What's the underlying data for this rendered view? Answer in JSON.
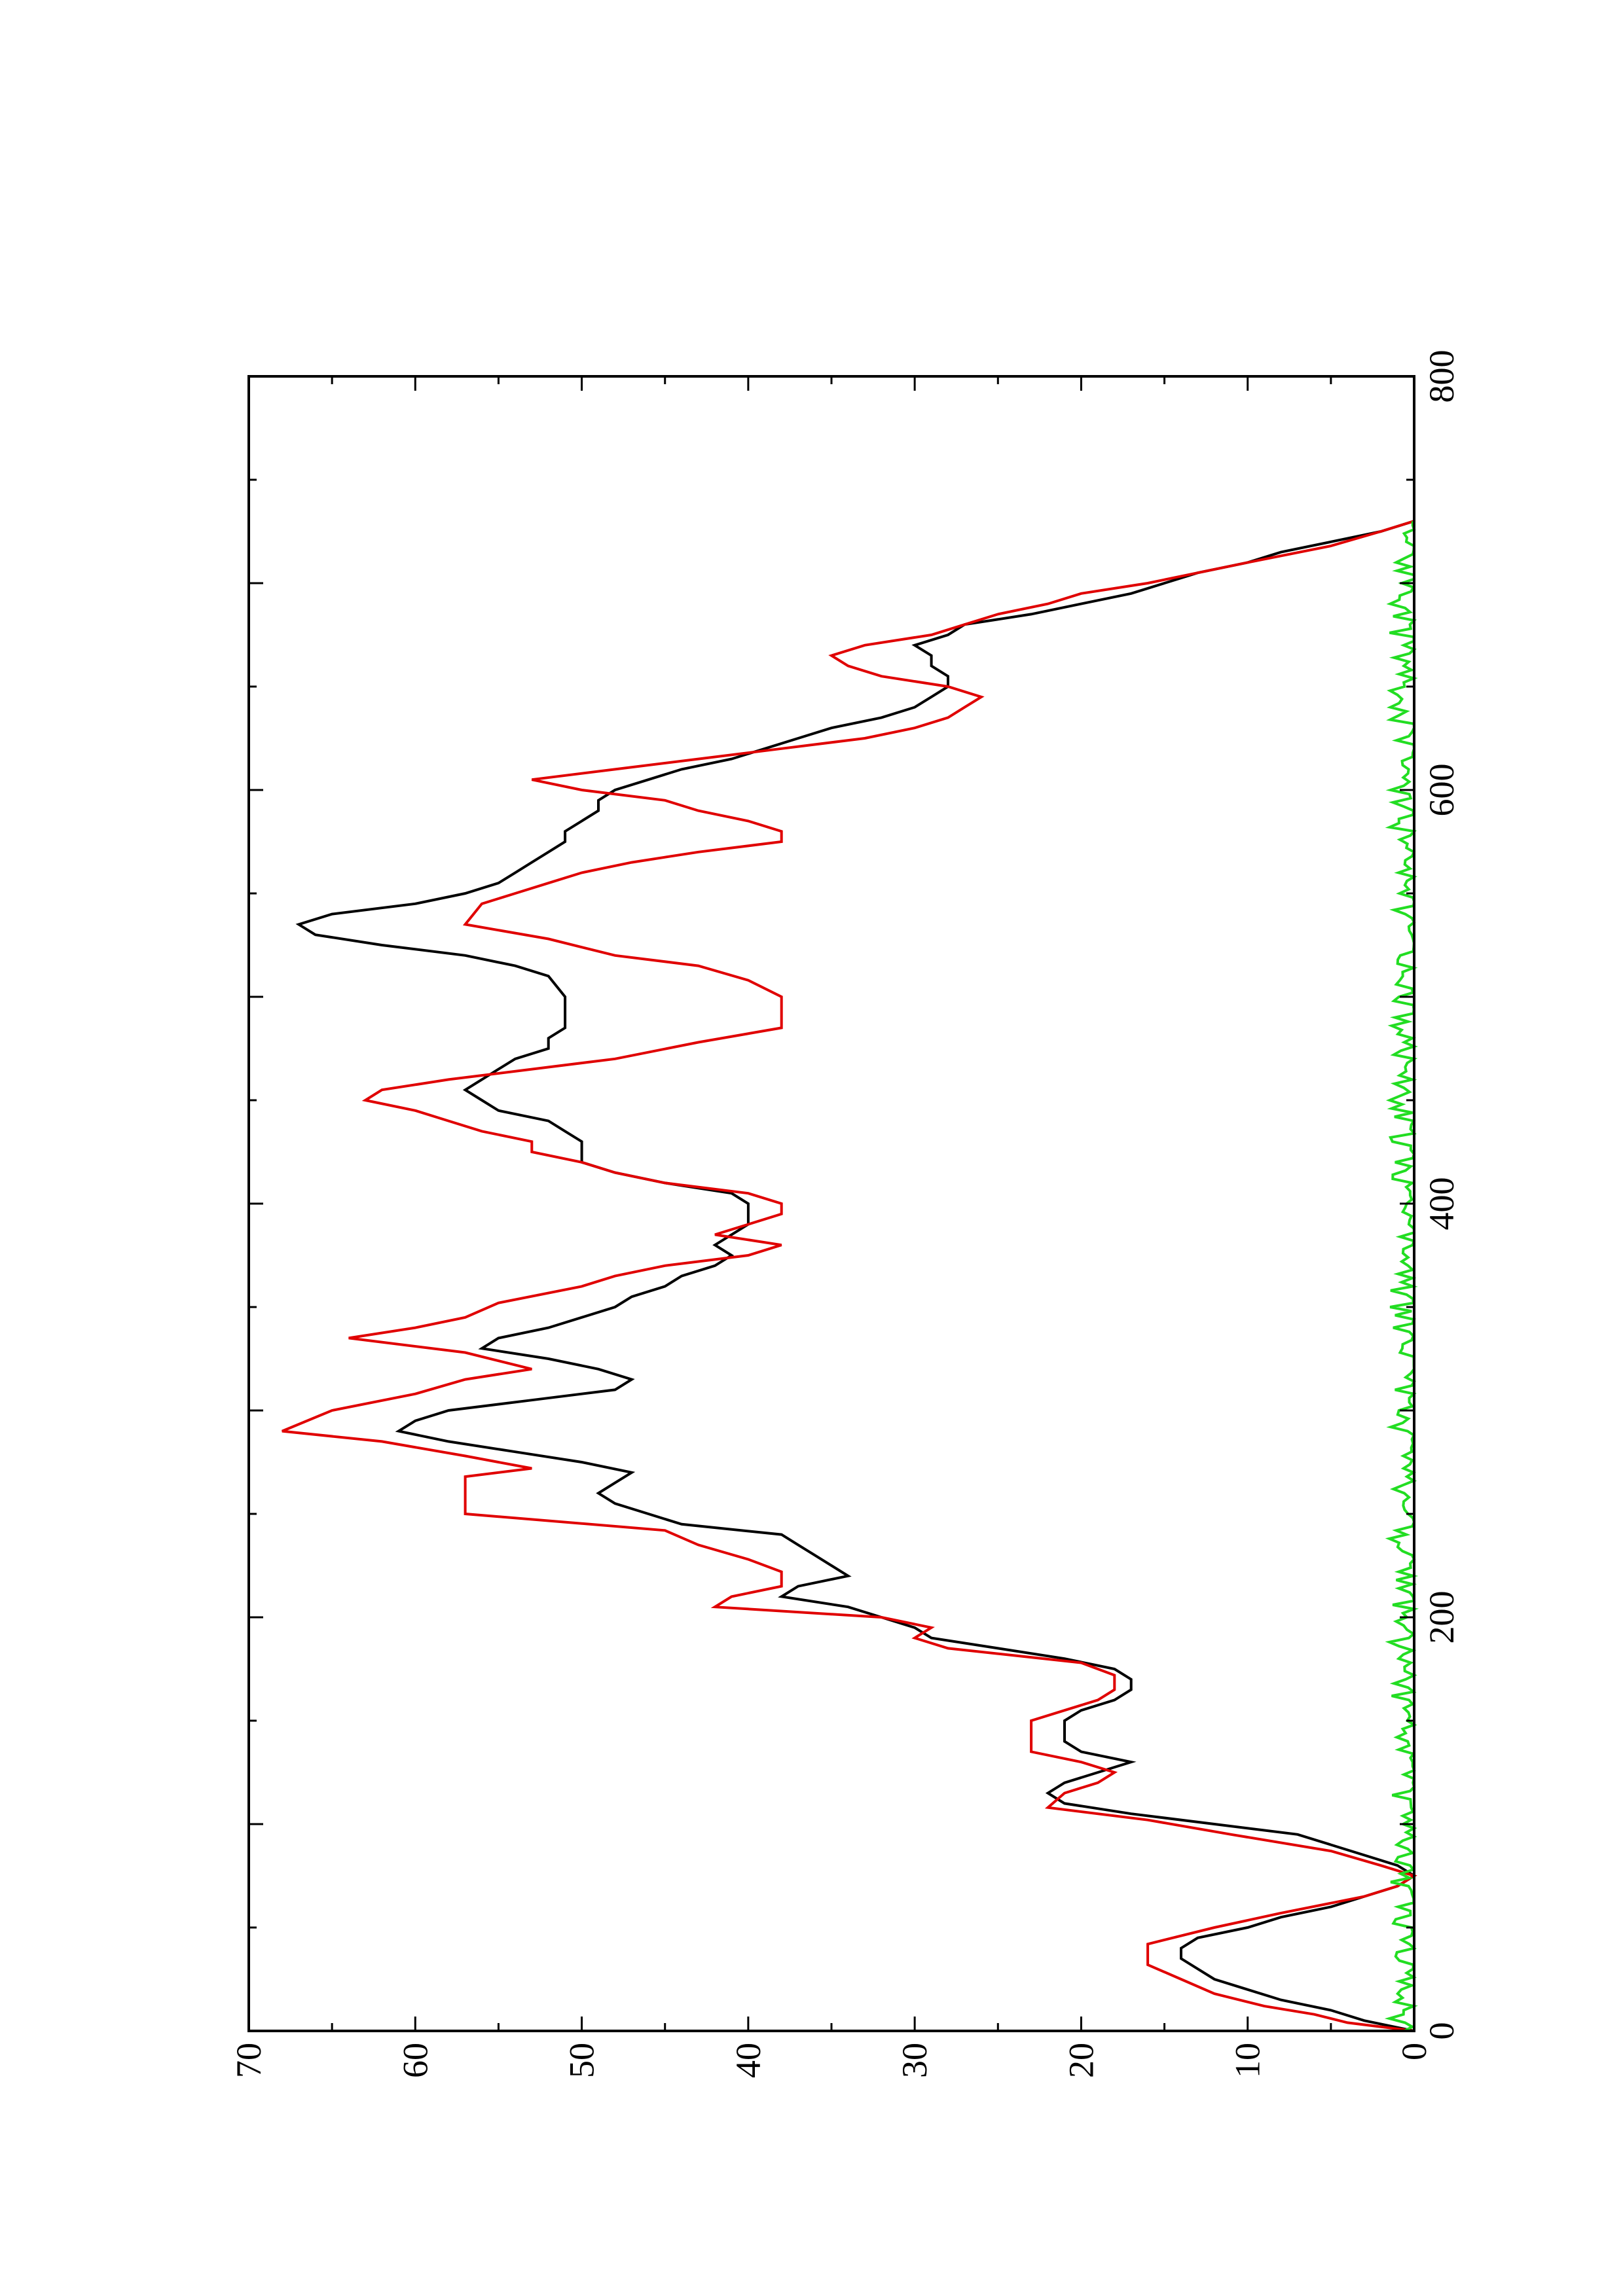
{
  "chart_data": {
    "type": "line",
    "orientation": "rotated-90-ccw",
    "title": "",
    "xlabel": "",
    "ylabel": "",
    "xlim": [
      0,
      800
    ],
    "ylim": [
      0,
      70
    ],
    "grid": false,
    "legend": "none",
    "x_tick_labels": [
      "0",
      "200",
      "400",
      "600",
      "800"
    ],
    "y_tick_labels": [
      "0",
      "10",
      "20",
      "30",
      "40",
      "50",
      "60",
      "70"
    ],
    "series": [
      {
        "color": "#000000",
        "points": [
          [
            0,
            0
          ],
          [
            5,
            3
          ],
          [
            10,
            5
          ],
          [
            15,
            8
          ],
          [
            20,
            10
          ],
          [
            25,
            12
          ],
          [
            30,
            13
          ],
          [
            35,
            14
          ],
          [
            40,
            14
          ],
          [
            45,
            13
          ],
          [
            50,
            10
          ],
          [
            55,
            8
          ],
          [
            60,
            5
          ],
          [
            65,
            3
          ],
          [
            70,
            1
          ],
          [
            75,
            0
          ],
          [
            80,
            1
          ],
          [
            85,
            3
          ],
          [
            90,
            5
          ],
          [
            95,
            7
          ],
          [
            100,
            12
          ],
          [
            105,
            17
          ],
          [
            110,
            21
          ],
          [
            115,
            22
          ],
          [
            120,
            21
          ],
          [
            125,
            19
          ],
          [
            130,
            17
          ],
          [
            135,
            20
          ],
          [
            140,
            21
          ],
          [
            150,
            21
          ],
          [
            155,
            20
          ],
          [
            160,
            18
          ],
          [
            165,
            17
          ],
          [
            170,
            17
          ],
          [
            175,
            18
          ],
          [
            180,
            21
          ],
          [
            185,
            25
          ],
          [
            190,
            29
          ],
          [
            195,
            30
          ],
          [
            200,
            32
          ],
          [
            205,
            34
          ],
          [
            210,
            38
          ],
          [
            215,
            37
          ],
          [
            220,
            34
          ],
          [
            225,
            35
          ],
          [
            230,
            36
          ],
          [
            235,
            37
          ],
          [
            240,
            38
          ],
          [
            245,
            44
          ],
          [
            250,
            46
          ],
          [
            255,
            48
          ],
          [
            260,
            49
          ],
          [
            265,
            48
          ],
          [
            270,
            47
          ],
          [
            275,
            50
          ],
          [
            280,
            54
          ],
          [
            285,
            58
          ],
          [
            290,
            61
          ],
          [
            295,
            60
          ],
          [
            300,
            58
          ],
          [
            305,
            53
          ],
          [
            310,
            48
          ],
          [
            315,
            47
          ],
          [
            320,
            49
          ],
          [
            325,
            52
          ],
          [
            330,
            56
          ],
          [
            335,
            55
          ],
          [
            340,
            52
          ],
          [
            345,
            50
          ],
          [
            350,
            48
          ],
          [
            355,
            47
          ],
          [
            360,
            45
          ],
          [
            365,
            44
          ],
          [
            370,
            42
          ],
          [
            375,
            41
          ],
          [
            380,
            42
          ],
          [
            385,
            41
          ],
          [
            390,
            40
          ],
          [
            395,
            40
          ],
          [
            400,
            40
          ],
          [
            405,
            41
          ],
          [
            410,
            45
          ],
          [
            415,
            48
          ],
          [
            420,
            50
          ],
          [
            425,
            50
          ],
          [
            430,
            50
          ],
          [
            435,
            51
          ],
          [
            440,
            52
          ],
          [
            445,
            55
          ],
          [
            450,
            56
          ],
          [
            455,
            57
          ],
          [
            460,
            56
          ],
          [
            465,
            55
          ],
          [
            470,
            54
          ],
          [
            475,
            52
          ],
          [
            480,
            52
          ],
          [
            485,
            51
          ],
          [
            490,
            51
          ],
          [
            500,
            51
          ],
          [
            510,
            52
          ],
          [
            515,
            54
          ],
          [
            520,
            57
          ],
          [
            525,
            62
          ],
          [
            530,
            66
          ],
          [
            535,
            67
          ],
          [
            540,
            65
          ],
          [
            545,
            60
          ],
          [
            550,
            57
          ],
          [
            555,
            55
          ],
          [
            560,
            54
          ],
          [
            565,
            53
          ],
          [
            570,
            52
          ],
          [
            575,
            51
          ],
          [
            580,
            51
          ],
          [
            585,
            50
          ],
          [
            590,
            49
          ],
          [
            595,
            49
          ],
          [
            600,
            48
          ],
          [
            605,
            46
          ],
          [
            610,
            44
          ],
          [
            615,
            41
          ],
          [
            620,
            39
          ],
          [
            625,
            37
          ],
          [
            630,
            35
          ],
          [
            635,
            32
          ],
          [
            640,
            30
          ],
          [
            645,
            29
          ],
          [
            650,
            28
          ],
          [
            655,
            28
          ],
          [
            660,
            29
          ],
          [
            665,
            29
          ],
          [
            670,
            30
          ],
          [
            675,
            28
          ],
          [
            680,
            27
          ],
          [
            685,
            23
          ],
          [
            690,
            20
          ],
          [
            695,
            17
          ],
          [
            700,
            15
          ],
          [
            705,
            13
          ],
          [
            710,
            10
          ],
          [
            715,
            8
          ],
          [
            720,
            5
          ],
          [
            725,
            2
          ],
          [
            730,
            0
          ]
        ]
      },
      {
        "color": "#e00000",
        "points": [
          [
            0,
            0
          ],
          [
            4,
            4
          ],
          [
            8,
            6
          ],
          [
            12,
            9
          ],
          [
            18,
            12
          ],
          [
            25,
            14
          ],
          [
            32,
            16
          ],
          [
            42,
            16
          ],
          [
            50,
            12
          ],
          [
            57,
            8
          ],
          [
            65,
            3
          ],
          [
            70,
            1
          ],
          [
            75,
            0
          ],
          [
            80,
            2
          ],
          [
            87,
            5
          ],
          [
            95,
            11
          ],
          [
            102,
            16
          ],
          [
            108,
            22
          ],
          [
            115,
            21
          ],
          [
            120,
            19
          ],
          [
            125,
            18
          ],
          [
            130,
            20
          ],
          [
            135,
            23
          ],
          [
            150,
            23
          ],
          [
            155,
            21
          ],
          [
            160,
            19
          ],
          [
            165,
            18
          ],
          [
            172,
            18
          ],
          [
            178,
            20
          ],
          [
            185,
            28
          ],
          [
            190,
            30
          ],
          [
            195,
            29
          ],
          [
            200,
            32
          ],
          [
            205,
            42
          ],
          [
            210,
            41
          ],
          [
            215,
            38
          ],
          [
            222,
            38
          ],
          [
            228,
            40
          ],
          [
            235,
            43
          ],
          [
            242,
            45
          ],
          [
            250,
            57
          ],
          [
            262,
            57
          ],
          [
            268,
            57
          ],
          [
            272,
            53
          ],
          [
            278,
            57
          ],
          [
            285,
            62
          ],
          [
            290,
            68
          ],
          [
            300,
            65
          ],
          [
            308,
            60
          ],
          [
            315,
            57
          ],
          [
            320,
            53
          ],
          [
            328,
            57
          ],
          [
            335,
            64
          ],
          [
            340,
            60
          ],
          [
            345,
            57
          ],
          [
            352,
            55
          ],
          [
            360,
            50
          ],
          [
            365,
            48
          ],
          [
            370,
            45
          ],
          [
            375,
            40
          ],
          [
            380,
            38
          ],
          [
            385,
            42
          ],
          [
            390,
            40
          ],
          [
            395,
            38
          ],
          [
            400,
            38
          ],
          [
            405,
            40
          ],
          [
            410,
            45
          ],
          [
            415,
            48
          ],
          [
            420,
            50
          ],
          [
            425,
            53
          ],
          [
            430,
            53
          ],
          [
            435,
            56
          ],
          [
            440,
            58
          ],
          [
            445,
            60
          ],
          [
            450,
            63
          ],
          [
            455,
            62
          ],
          [
            460,
            58
          ],
          [
            465,
            53
          ],
          [
            470,
            48
          ],
          [
            478,
            43
          ],
          [
            485,
            38
          ],
          [
            500,
            38
          ],
          [
            508,
            40
          ],
          [
            515,
            43
          ],
          [
            520,
            48
          ],
          [
            528,
            52
          ],
          [
            535,
            57
          ],
          [
            545,
            56
          ],
          [
            550,
            54
          ],
          [
            555,
            52
          ],
          [
            560,
            50
          ],
          [
            565,
            47
          ],
          [
            570,
            43
          ],
          [
            575,
            38
          ],
          [
            580,
            38
          ],
          [
            585,
            40
          ],
          [
            590,
            43
          ],
          [
            595,
            45
          ],
          [
            600,
            50
          ],
          [
            605,
            53
          ],
          [
            610,
            48
          ],
          [
            615,
            43
          ],
          [
            620,
            38
          ],
          [
            625,
            33
          ],
          [
            630,
            30
          ],
          [
            635,
            28
          ],
          [
            640,
            27
          ],
          [
            645,
            26
          ],
          [
            650,
            28
          ],
          [
            655,
            32
          ],
          [
            660,
            34
          ],
          [
            665,
            35
          ],
          [
            670,
            33
          ],
          [
            675,
            29
          ],
          [
            680,
            27
          ],
          [
            685,
            25
          ],
          [
            690,
            22
          ],
          [
            695,
            20
          ],
          [
            700,
            16
          ],
          [
            710,
            10
          ],
          [
            718,
            5
          ],
          [
            725,
            2
          ],
          [
            730,
            0
          ]
        ]
      },
      {
        "color": "#22dd22",
        "amplitude_max": 1.5,
        "x_range": [
          0,
          730
        ]
      }
    ]
  }
}
